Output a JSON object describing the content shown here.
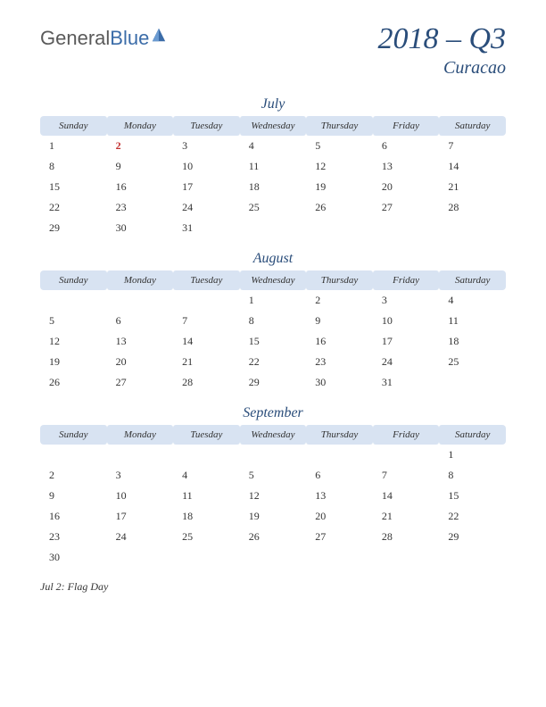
{
  "logo": {
    "text1": "General",
    "text2": "Blue",
    "color1": "#5a5a5a",
    "color2": "#3b6ca8"
  },
  "header": {
    "quarter": "2018 – Q3",
    "country": "Curacao",
    "title_color": "#2a4d7a"
  },
  "day_headers": [
    "Sunday",
    "Monday",
    "Tuesday",
    "Wednesday",
    "Thursday",
    "Friday",
    "Saturday"
  ],
  "header_bg": "#d8e3f2",
  "months": [
    {
      "name": "July",
      "weeks": [
        [
          {
            "d": "1"
          },
          {
            "d": "2",
            "h": true
          },
          {
            "d": "3"
          },
          {
            "d": "4"
          },
          {
            "d": "5"
          },
          {
            "d": "6"
          },
          {
            "d": "7"
          }
        ],
        [
          {
            "d": "8"
          },
          {
            "d": "9"
          },
          {
            "d": "10"
          },
          {
            "d": "11"
          },
          {
            "d": "12"
          },
          {
            "d": "13"
          },
          {
            "d": "14"
          }
        ],
        [
          {
            "d": "15"
          },
          {
            "d": "16"
          },
          {
            "d": "17"
          },
          {
            "d": "18"
          },
          {
            "d": "19"
          },
          {
            "d": "20"
          },
          {
            "d": "21"
          }
        ],
        [
          {
            "d": "22"
          },
          {
            "d": "23"
          },
          {
            "d": "24"
          },
          {
            "d": "25"
          },
          {
            "d": "26"
          },
          {
            "d": "27"
          },
          {
            "d": "28"
          }
        ],
        [
          {
            "d": "29"
          },
          {
            "d": "30"
          },
          {
            "d": "31"
          },
          {
            "d": ""
          },
          {
            "d": ""
          },
          {
            "d": ""
          },
          {
            "d": ""
          }
        ]
      ]
    },
    {
      "name": "August",
      "weeks": [
        [
          {
            "d": ""
          },
          {
            "d": ""
          },
          {
            "d": ""
          },
          {
            "d": "1"
          },
          {
            "d": "2"
          },
          {
            "d": "3"
          },
          {
            "d": "4"
          }
        ],
        [
          {
            "d": "5"
          },
          {
            "d": "6"
          },
          {
            "d": "7"
          },
          {
            "d": "8"
          },
          {
            "d": "9"
          },
          {
            "d": "10"
          },
          {
            "d": "11"
          }
        ],
        [
          {
            "d": "12"
          },
          {
            "d": "13"
          },
          {
            "d": "14"
          },
          {
            "d": "15"
          },
          {
            "d": "16"
          },
          {
            "d": "17"
          },
          {
            "d": "18"
          }
        ],
        [
          {
            "d": "19"
          },
          {
            "d": "20"
          },
          {
            "d": "21"
          },
          {
            "d": "22"
          },
          {
            "d": "23"
          },
          {
            "d": "24"
          },
          {
            "d": "25"
          }
        ],
        [
          {
            "d": "26"
          },
          {
            "d": "27"
          },
          {
            "d": "28"
          },
          {
            "d": "29"
          },
          {
            "d": "30"
          },
          {
            "d": "31"
          },
          {
            "d": ""
          }
        ]
      ]
    },
    {
      "name": "September",
      "weeks": [
        [
          {
            "d": ""
          },
          {
            "d": ""
          },
          {
            "d": ""
          },
          {
            "d": ""
          },
          {
            "d": ""
          },
          {
            "d": ""
          },
          {
            "d": "1"
          }
        ],
        [
          {
            "d": "2"
          },
          {
            "d": "3"
          },
          {
            "d": "4"
          },
          {
            "d": "5"
          },
          {
            "d": "6"
          },
          {
            "d": "7"
          },
          {
            "d": "8"
          }
        ],
        [
          {
            "d": "9"
          },
          {
            "d": "10"
          },
          {
            "d": "11"
          },
          {
            "d": "12"
          },
          {
            "d": "13"
          },
          {
            "d": "14"
          },
          {
            "d": "15"
          }
        ],
        [
          {
            "d": "16"
          },
          {
            "d": "17"
          },
          {
            "d": "18"
          },
          {
            "d": "19"
          },
          {
            "d": "20"
          },
          {
            "d": "21"
          },
          {
            "d": "22"
          }
        ],
        [
          {
            "d": "23"
          },
          {
            "d": "24"
          },
          {
            "d": "25"
          },
          {
            "d": "26"
          },
          {
            "d": "27"
          },
          {
            "d": "28"
          },
          {
            "d": "29"
          }
        ],
        [
          {
            "d": "30"
          },
          {
            "d": ""
          },
          {
            "d": ""
          },
          {
            "d": ""
          },
          {
            "d": ""
          },
          {
            "d": ""
          },
          {
            "d": ""
          }
        ]
      ]
    }
  ],
  "holiday_note": "Jul 2: Flag Day",
  "holiday_color": "#c23030"
}
